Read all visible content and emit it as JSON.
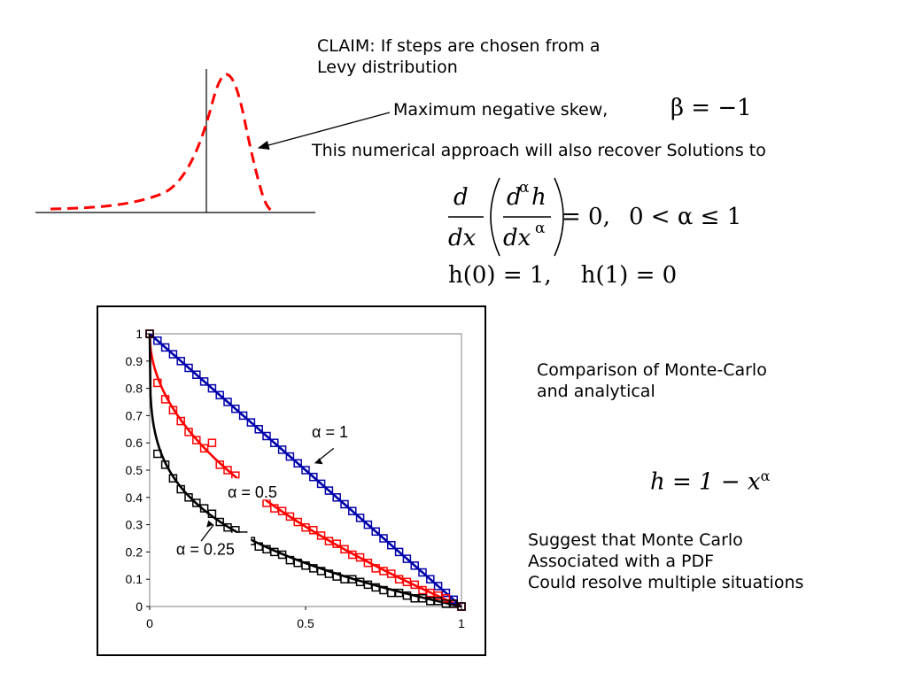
{
  "claim": {
    "line1": "CLAIM: If steps are chosen from a",
    "line2": "Levy distribution"
  },
  "skew": {
    "label": "Maximum negative skew,",
    "beta_equation": "β = −1"
  },
  "recover_text": "This numerical approach will also recover Solutions to",
  "equations": {
    "d": "d",
    "dx": "dx",
    "d_alpha_h": "d",
    "d_alpha_h_sup": "α",
    "d_alpha_h_h": "h",
    "dx_alpha": "dx",
    "dx_alpha_sup": "α",
    "eq_rhs": "= 0,",
    "constraint": "0 < α ≤ 1",
    "bc": "h(0) = 1,    h(1) = 0"
  },
  "comparison": {
    "line1": "Comparison of Monte-Carlo",
    "line2": "and analytical"
  },
  "solution": {
    "lhs": "h = 1 − x",
    "sup": "α"
  },
  "suggest": {
    "line1": "Suggest that Monte Carlo",
    "line2": "Associated with a PDF",
    "line3": "Could resolve multiple situations"
  },
  "colors": {
    "red": "#ff0000",
    "blue": "#0000aa",
    "black": "#000000",
    "dashed_red": "#ff0000"
  },
  "chart_data": {
    "type": "line",
    "title": "",
    "xlabel": "",
    "ylabel": "",
    "xlim": [
      0,
      1
    ],
    "ylim": [
      0,
      1
    ],
    "x_ticks": [
      "0",
      "0.5",
      "1"
    ],
    "y_ticks": [
      "0",
      "0.1",
      "0.2",
      "0.3",
      "0.4",
      "0.5",
      "0.6",
      "0.7",
      "0.8",
      "0.9",
      "1"
    ],
    "annotations": [
      {
        "text": "α = 1",
        "target": "alpha-1"
      },
      {
        "text": "α = 0.5",
        "target": "alpha-0.5"
      },
      {
        "text": "α = 0.25",
        "target": "alpha-0.25"
      }
    ],
    "series": [
      {
        "name": "α = 1",
        "alpha": 1,
        "kind": "analytical",
        "color": "#0000aa",
        "formula": "h = 1 - x^alpha"
      },
      {
        "name": "α = 0.5",
        "alpha": 0.5,
        "kind": "analytical",
        "color": "#ff0000",
        "formula": "h = 1 - x^alpha"
      },
      {
        "name": "α = 0.25",
        "alpha": 0.25,
        "kind": "analytical",
        "color": "#000000",
        "formula": "h = 1 - x^alpha"
      },
      {
        "alpha": 1,
        "kind": "monte-carlo",
        "marker": "square",
        "color": "#0000aa",
        "x": [
          0,
          0.025,
          0.05,
          0.075,
          0.1,
          0.125,
          0.15,
          0.175,
          0.2,
          0.225,
          0.25,
          0.275,
          0.3,
          0.325,
          0.35,
          0.375,
          0.4,
          0.425,
          0.45,
          0.475,
          0.5,
          0.525,
          0.55,
          0.575,
          0.6,
          0.625,
          0.65,
          0.675,
          0.7,
          0.725,
          0.75,
          0.775,
          0.8,
          0.825,
          0.85,
          0.875,
          0.9,
          0.925,
          0.95,
          0.975,
          1
        ],
        "y": [
          1,
          0.975,
          0.95,
          0.925,
          0.9,
          0.875,
          0.85,
          0.825,
          0.8,
          0.775,
          0.75,
          0.725,
          0.7,
          0.675,
          0.65,
          0.625,
          0.6,
          0.575,
          0.55,
          0.525,
          0.5,
          0.475,
          0.45,
          0.425,
          0.4,
          0.375,
          0.35,
          0.325,
          0.3,
          0.275,
          0.25,
          0.225,
          0.2,
          0.175,
          0.15,
          0.125,
          0.1,
          0.075,
          0.05,
          0.025,
          0
        ]
      },
      {
        "alpha": 0.5,
        "kind": "monte-carlo",
        "marker": "square",
        "color": "#ff0000",
        "x": [
          0,
          0.025,
          0.05,
          0.075,
          0.1,
          0.125,
          0.15,
          0.175,
          0.2,
          0.225,
          0.25,
          0.275,
          0.3,
          0.325,
          0.35,
          0.375,
          0.4,
          0.425,
          0.45,
          0.475,
          0.5,
          0.525,
          0.55,
          0.575,
          0.6,
          0.625,
          0.65,
          0.675,
          0.7,
          0.725,
          0.75,
          0.775,
          0.8,
          0.825,
          0.85,
          0.875,
          0.9,
          0.925,
          0.95,
          0.975,
          1
        ],
        "y": [
          1,
          0.82,
          0.76,
          0.72,
          0.68,
          0.64,
          0.61,
          0.58,
          0.6,
          0.52,
          0.5,
          0.48,
          0.45,
          0.43,
          0.41,
          0.38,
          0.36,
          0.35,
          0.33,
          0.31,
          0.29,
          0.28,
          0.26,
          0.24,
          0.23,
          0.21,
          0.19,
          0.18,
          0.16,
          0.14,
          0.13,
          0.12,
          0.1,
          0.09,
          0.08,
          0.06,
          0.05,
          0.04,
          0.03,
          0.01,
          0
        ]
      },
      {
        "alpha": 0.25,
        "kind": "monte-carlo",
        "marker": "square",
        "color": "#000000",
        "x": [
          0,
          0.025,
          0.05,
          0.075,
          0.1,
          0.125,
          0.15,
          0.175,
          0.2,
          0.225,
          0.25,
          0.275,
          0.3,
          0.325,
          0.35,
          0.375,
          0.4,
          0.425,
          0.45,
          0.475,
          0.5,
          0.525,
          0.55,
          0.575,
          0.6,
          0.625,
          0.65,
          0.675,
          0.7,
          0.725,
          0.75,
          0.775,
          0.8,
          0.825,
          0.85,
          0.875,
          0.9,
          0.925,
          0.95,
          0.975,
          1
        ],
        "y": [
          1,
          0.56,
          0.52,
          0.47,
          0.43,
          0.4,
          0.38,
          0.36,
          0.34,
          0.31,
          0.29,
          0.28,
          0.26,
          0.24,
          0.22,
          0.21,
          0.2,
          0.19,
          0.17,
          0.16,
          0.15,
          0.14,
          0.13,
          0.12,
          0.11,
          0.1,
          0.1,
          0.09,
          0.08,
          0.07,
          0.06,
          0.05,
          0.05,
          0.04,
          0.03,
          0.03,
          0.02,
          0.02,
          0.01,
          0.01,
          0
        ]
      }
    ]
  }
}
